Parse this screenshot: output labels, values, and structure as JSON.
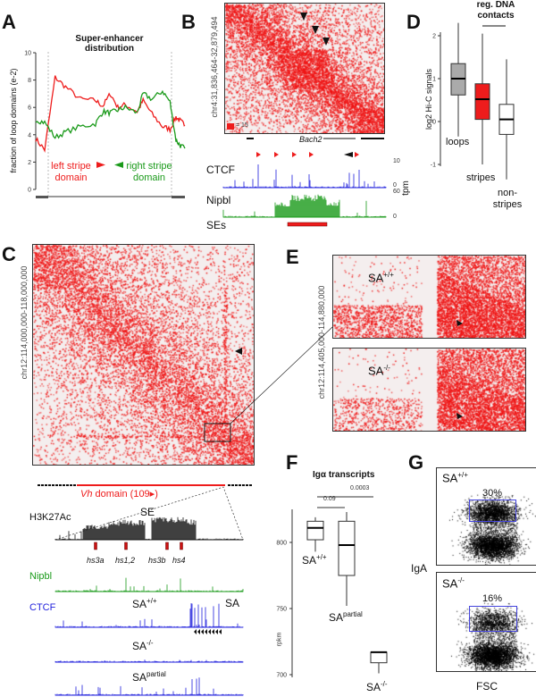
{
  "panels": {
    "A": "A",
    "B": "B",
    "C": "C",
    "D": "D",
    "E": "E",
    "F": "F",
    "G": "G"
  },
  "colors": {
    "red": "#ee1c1c",
    "green": "#1a9a1a",
    "blue": "#1f1fdc",
    "gray": "#aaaaaa",
    "gate": "#4444dd"
  },
  "A": {
    "title_1": "Super-enhancer",
    "title_2": "distribution",
    "left_label_1": "left stripe",
    "left_label_2": "domain",
    "right_label_1": "right stripe",
    "right_label_2": "domain"
  },
  "B": {
    "ylabel": "chr4:31,836,464-32,879,494",
    "scale": "= 15",
    "gene": "Bach2",
    "ctcf": "CTCF",
    "nipbl": "Nipbl",
    "ses": "SEs",
    "unit": "tpm",
    "ctcf_max": "10",
    "ctcf_min": "0",
    "nipbl_max": "60",
    "nipbl_min": "0"
  },
  "C": {
    "ylabel": "chr12:114,000,000-118,000,000",
    "domain_prefix": "Vh",
    "domain_suffix": " domain (109▸)",
    "h3k27ac": "H3K27Ac",
    "se": "SE",
    "hs": [
      "hs3a",
      "hs1,2",
      "hs3b",
      "hs4"
    ],
    "nipbl": "Nipbl",
    "ctcf": "CTCF",
    "sa": "SA",
    "wt_base": "SA",
    "wt_sup": "+/+",
    "ko_base": "SA",
    "ko_sup": "-/-",
    "partial_base": "SA",
    "partial_sup": "partial"
  },
  "E": {
    "ylabel": "chr12:114,405,000-114,880,000",
    "top_base": "SA",
    "top_sup": "+/+",
    "bottom_base": "SA",
    "bottom_sup": "-/-"
  },
  "F": {
    "title": "Igα transcripts",
    "ylabel": "rpkm",
    "p1": "0.09",
    "p2": "0.0003",
    "wt_base": "SA",
    "wt_sup": "+/+",
    "partial_base": "SA",
    "partial_sup": "partial",
    "ko_base": "SA",
    "ko_sup": "-/-"
  },
  "G": {
    "top_base": "SA",
    "top_sup": "+/+",
    "top_pct": "30%",
    "bottom_base": "SA",
    "bottom_sup": "-/-",
    "bottom_pct": "16%",
    "ylabel": "IgA",
    "xlabel": "FSC"
  },
  "D": {
    "title_1": "reg. DNA",
    "title_2": "contacts",
    "ylabel": "log2 Hi-C signals"
  },
  "chart_data": [
    {
      "type": "line",
      "panel": "A",
      "title": "Super-enhancer distribution",
      "xlabel": "",
      "ylabel": "fraction of loop domains (e-2)",
      "ylim": [
        0,
        10
      ],
      "yticks": [
        "0",
        "2",
        "4",
        "6",
        "8",
        "10"
      ],
      "x": [
        0,
        6,
        13,
        20,
        30,
        40,
        45,
        50,
        55,
        60,
        68,
        72,
        78,
        85,
        90,
        94,
        97,
        100
      ],
      "series": [
        {
          "name": "left stripe domain",
          "color": "#ee1c1c",
          "values": [
            3.7,
            2.9,
            8.2,
            7.5,
            6.6,
            6.5,
            6.1,
            7.0,
            6.0,
            6.2,
            5.7,
            6.5,
            5.5,
            4.6,
            4.4,
            5.3,
            5.0,
            4.7
          ]
        },
        {
          "name": "right stripe domain",
          "color": "#1a9a1a",
          "values": [
            5.1,
            4.9,
            3.8,
            4.2,
            4.6,
            4.8,
            5.7,
            5.6,
            5.8,
            6.0,
            5.6,
            7.0,
            6.6,
            7.2,
            6.4,
            3.6,
            3.2,
            3.0
          ]
        }
      ]
    },
    {
      "type": "box",
      "panel": "D",
      "ylabel": "log2 Hi-C signals",
      "ylim": [
        -1,
        2
      ],
      "yticks": [
        "-1",
        "0",
        "1",
        "2"
      ],
      "categories": [
        "loops",
        "stripes",
        "non-stripes"
      ],
      "boxes": [
        {
          "name": "loops",
          "min": -0.35,
          "q1": 0.62,
          "median": 1.0,
          "q3": 1.35,
          "max": 2.3,
          "color": "#aaaaaa"
        },
        {
          "name": "stripes",
          "min": -1.0,
          "q1": 0.05,
          "median": 0.52,
          "q3": 0.88,
          "max": 2.05,
          "color": "#ee1c1c"
        },
        {
          "name": "non-stripes",
          "min": -1.35,
          "q1": -0.3,
          "median": 0.05,
          "q3": 0.4,
          "max": 1.45,
          "color": "#ffffff"
        }
      ]
    },
    {
      "type": "box",
      "panel": "F",
      "title": "Igα transcripts",
      "ylabel": "rpkm",
      "ylim": [
        700,
        800
      ],
      "yticks": [
        "700",
        "750",
        "800"
      ],
      "categories": [
        "SA+/+",
        "SApartial",
        "SA-/-"
      ],
      "boxes": [
        {
          "name": "SA+/+",
          "min": 793,
          "q1": 802,
          "median": 811,
          "q3": 816,
          "max": 819
        },
        {
          "name": "SApartial",
          "min": 752,
          "q1": 775,
          "median": 798,
          "q3": 816,
          "max": 823
        },
        {
          "name": "SA-/-",
          "min": 701,
          "q1": 709,
          "median": 717,
          "q3": 717,
          "max": 717
        }
      ]
    }
  ]
}
